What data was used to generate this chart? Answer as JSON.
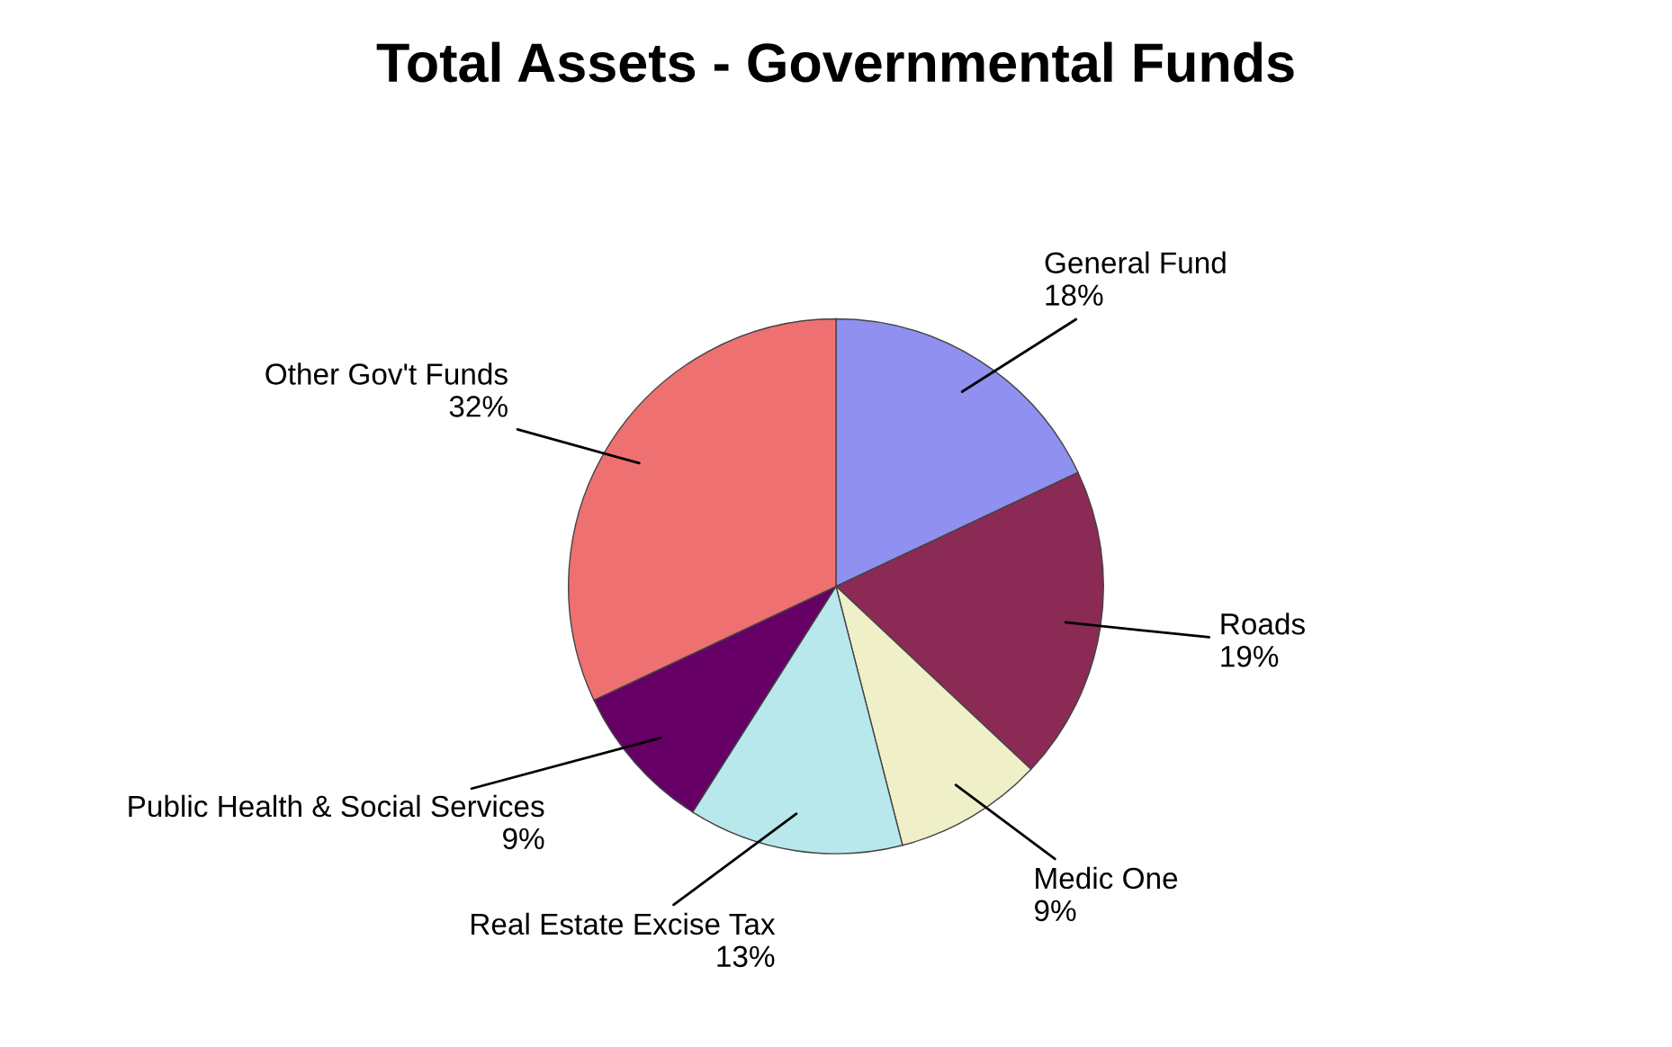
{
  "chart_data": {
    "type": "pie",
    "title": "Total Assets - Governmental Funds",
    "categories": [
      "General Fund",
      "Roads",
      "Medic One",
      "Real Estate Excise Tax",
      "Public Health & Social Services",
      "Other Gov't Funds"
    ],
    "values": [
      18,
      19,
      9,
      13,
      9,
      32
    ],
    "value_labels": [
      "18%",
      "19%",
      "9%",
      "13%",
      "9%",
      "32%"
    ],
    "colors": [
      "#9090f0",
      "#8b2a55",
      "#f0f0c8",
      "#b8e8ec",
      "#660066",
      "#ee7070"
    ]
  }
}
